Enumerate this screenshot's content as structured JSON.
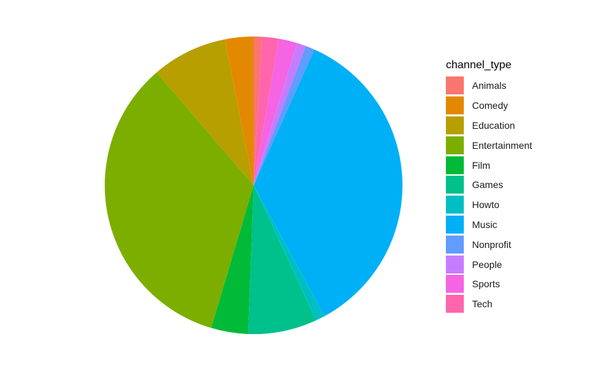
{
  "chart_data": {
    "type": "pie",
    "legend_title": "channel_type",
    "legend_position": "right",
    "slices": [
      {
        "label": "Animals",
        "value": 0.009,
        "color": "#F8766D"
      },
      {
        "label": "Tech",
        "value": 0.018,
        "color": "#FF65AC"
      },
      {
        "label": "Sports",
        "value": 0.02,
        "color": "#F564E3"
      },
      {
        "label": "People",
        "value": 0.01,
        "color": "#C77CFF"
      },
      {
        "label": "Nonprofit",
        "value": 0.01,
        "color": "#619CFF"
      },
      {
        "label": "Music",
        "value": 0.354,
        "color": "#00B0F6"
      },
      {
        "label": "Howto",
        "value": 0.01,
        "color": "#00BFC4"
      },
      {
        "label": "Games",
        "value": 0.075,
        "color": "#00C08B"
      },
      {
        "label": "Film",
        "value": 0.04,
        "color": "#00BA38"
      },
      {
        "label": "Entertainment",
        "value": 0.341,
        "color": "#7CAE00"
      },
      {
        "label": "Education",
        "value": 0.082,
        "color": "#B79F00"
      },
      {
        "label": "Comedy",
        "value": 0.031,
        "color": "#E38900"
      }
    ],
    "legend": [
      {
        "label": "Animals",
        "color": "#F8766D"
      },
      {
        "label": "Comedy",
        "color": "#E38900"
      },
      {
        "label": "Education",
        "color": "#B79F00"
      },
      {
        "label": "Entertainment",
        "color": "#7CAE00"
      },
      {
        "label": "Film",
        "color": "#00BA38"
      },
      {
        "label": "Games",
        "color": "#00C08B"
      },
      {
        "label": "Howto",
        "color": "#00BFC4"
      },
      {
        "label": "Music",
        "color": "#00B0F6"
      },
      {
        "label": "Nonprofit",
        "color": "#619CFF"
      },
      {
        "label": "People",
        "color": "#C77CFF"
      },
      {
        "label": "Sports",
        "color": "#F564E3"
      },
      {
        "label": "Tech",
        "color": "#FF65AC"
      }
    ]
  }
}
